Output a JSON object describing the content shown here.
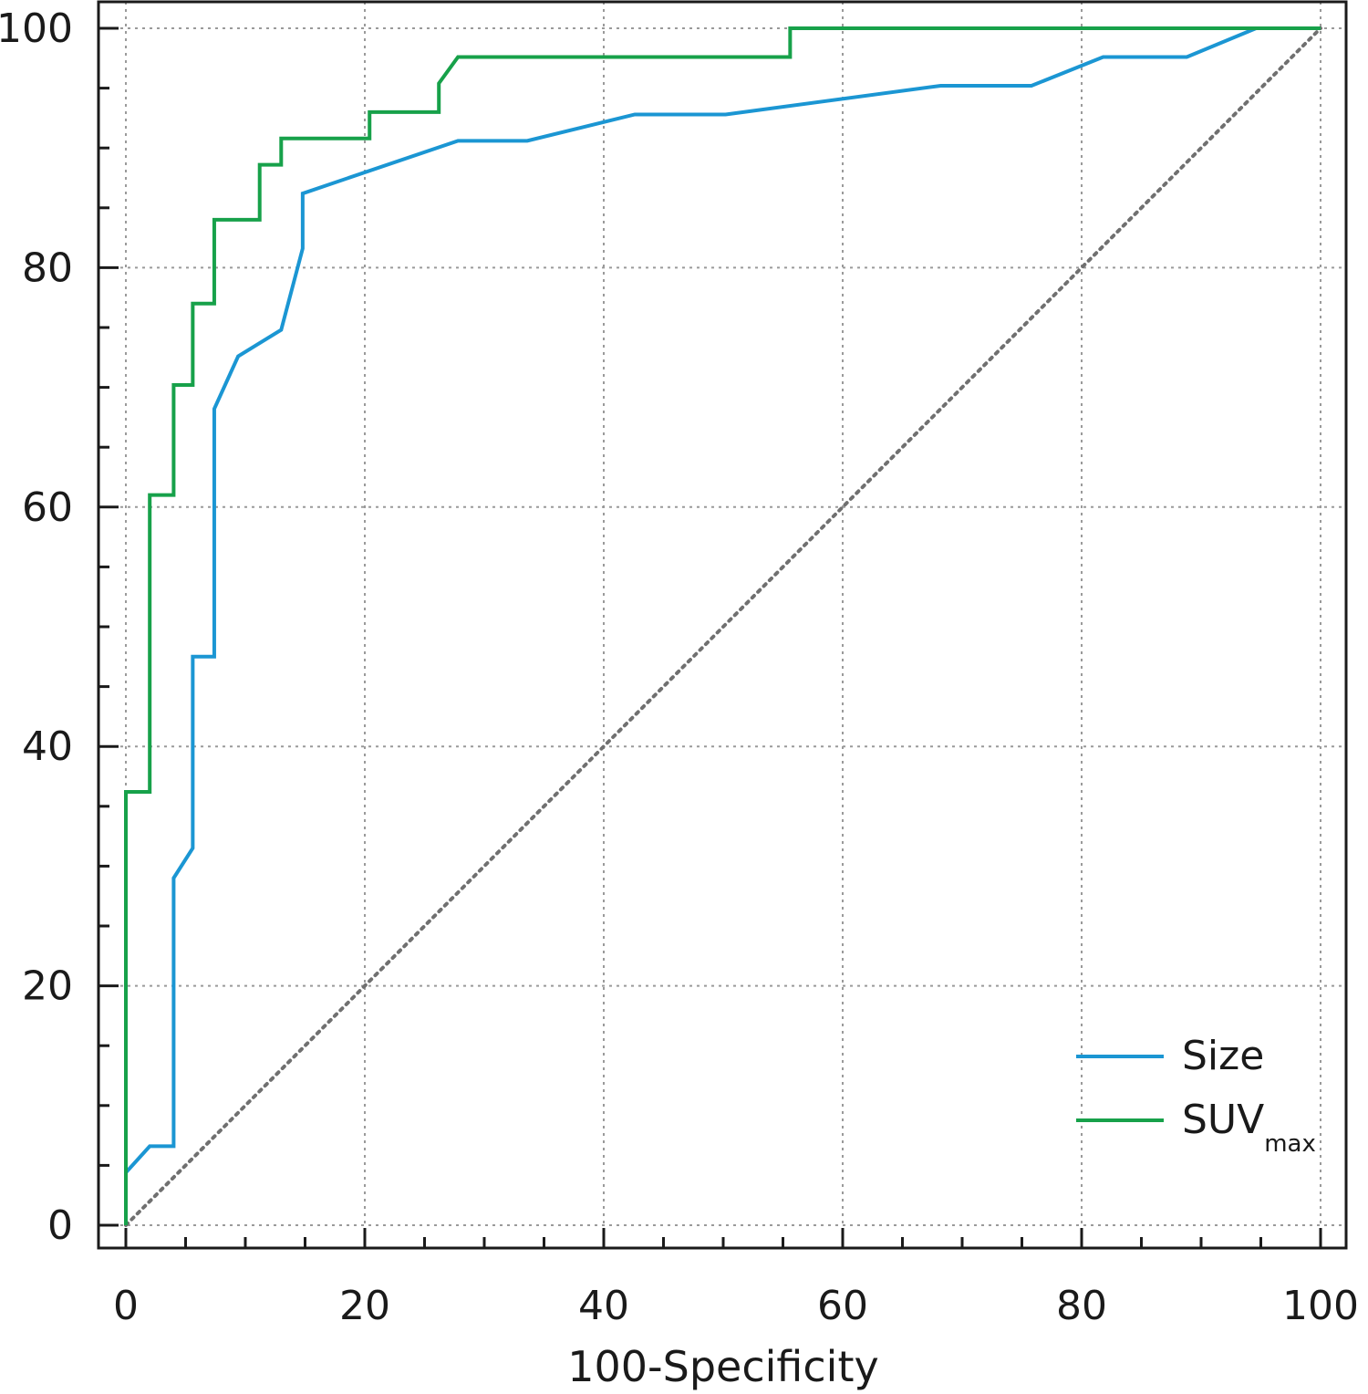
{
  "chart_data": {
    "type": "line",
    "xlabel": "100-Specificity",
    "ylabel": "",
    "xlim": [
      0,
      100
    ],
    "ylim": [
      0,
      100
    ],
    "xticks": [
      0,
      20,
      40,
      60,
      80,
      100
    ],
    "yticks": [
      0,
      20,
      40,
      60,
      80,
      100
    ],
    "x_tick_labels": [
      "0",
      "20",
      "40",
      "60",
      "80",
      "100"
    ],
    "y_tick_labels": [
      "0",
      "20",
      "40",
      "60",
      "80",
      "100"
    ],
    "grid": true,
    "legend_position": "bottom-right",
    "reference_line": {
      "x": [
        0,
        100
      ],
      "y": [
        0,
        100
      ],
      "style": "dotted",
      "color": "#707070"
    },
    "series": [
      {
        "name": "Size",
        "color": "#1b96d3",
        "x": [
          0,
          0,
          2,
          4,
          4,
          5.6,
          5.6,
          7.4,
          7.4,
          9.4,
          13,
          14.8,
          14.8,
          27.8,
          33.6,
          42.6,
          50.2,
          68.2,
          75.8,
          81.8,
          88.8,
          94.6,
          100
        ],
        "y": [
          0,
          4.4,
          6.6,
          6.6,
          29,
          31.5,
          47.5,
          47.5,
          68.2,
          72.6,
          74.8,
          81.6,
          86.2,
          90.6,
          90.6,
          92.8,
          92.8,
          95.2,
          95.2,
          97.6,
          97.6,
          100,
          100
        ]
      },
      {
        "name": "SUV",
        "name_subscript": "max",
        "color": "#17a14a",
        "x": [
          0,
          0,
          2,
          2,
          4,
          4,
          5.6,
          5.6,
          7.4,
          7.4,
          11.2,
          11.2,
          13,
          13,
          20.4,
          20.4,
          26.2,
          26.2,
          27.8,
          55.6,
          55.6,
          100
        ],
        "y": [
          0,
          36.2,
          36.2,
          61,
          61,
          70.2,
          70.2,
          77,
          77,
          84,
          84,
          88.6,
          88.6,
          90.8,
          90.8,
          93,
          93,
          95.4,
          97.6,
          97.6,
          100,
          100
        ]
      }
    ]
  }
}
